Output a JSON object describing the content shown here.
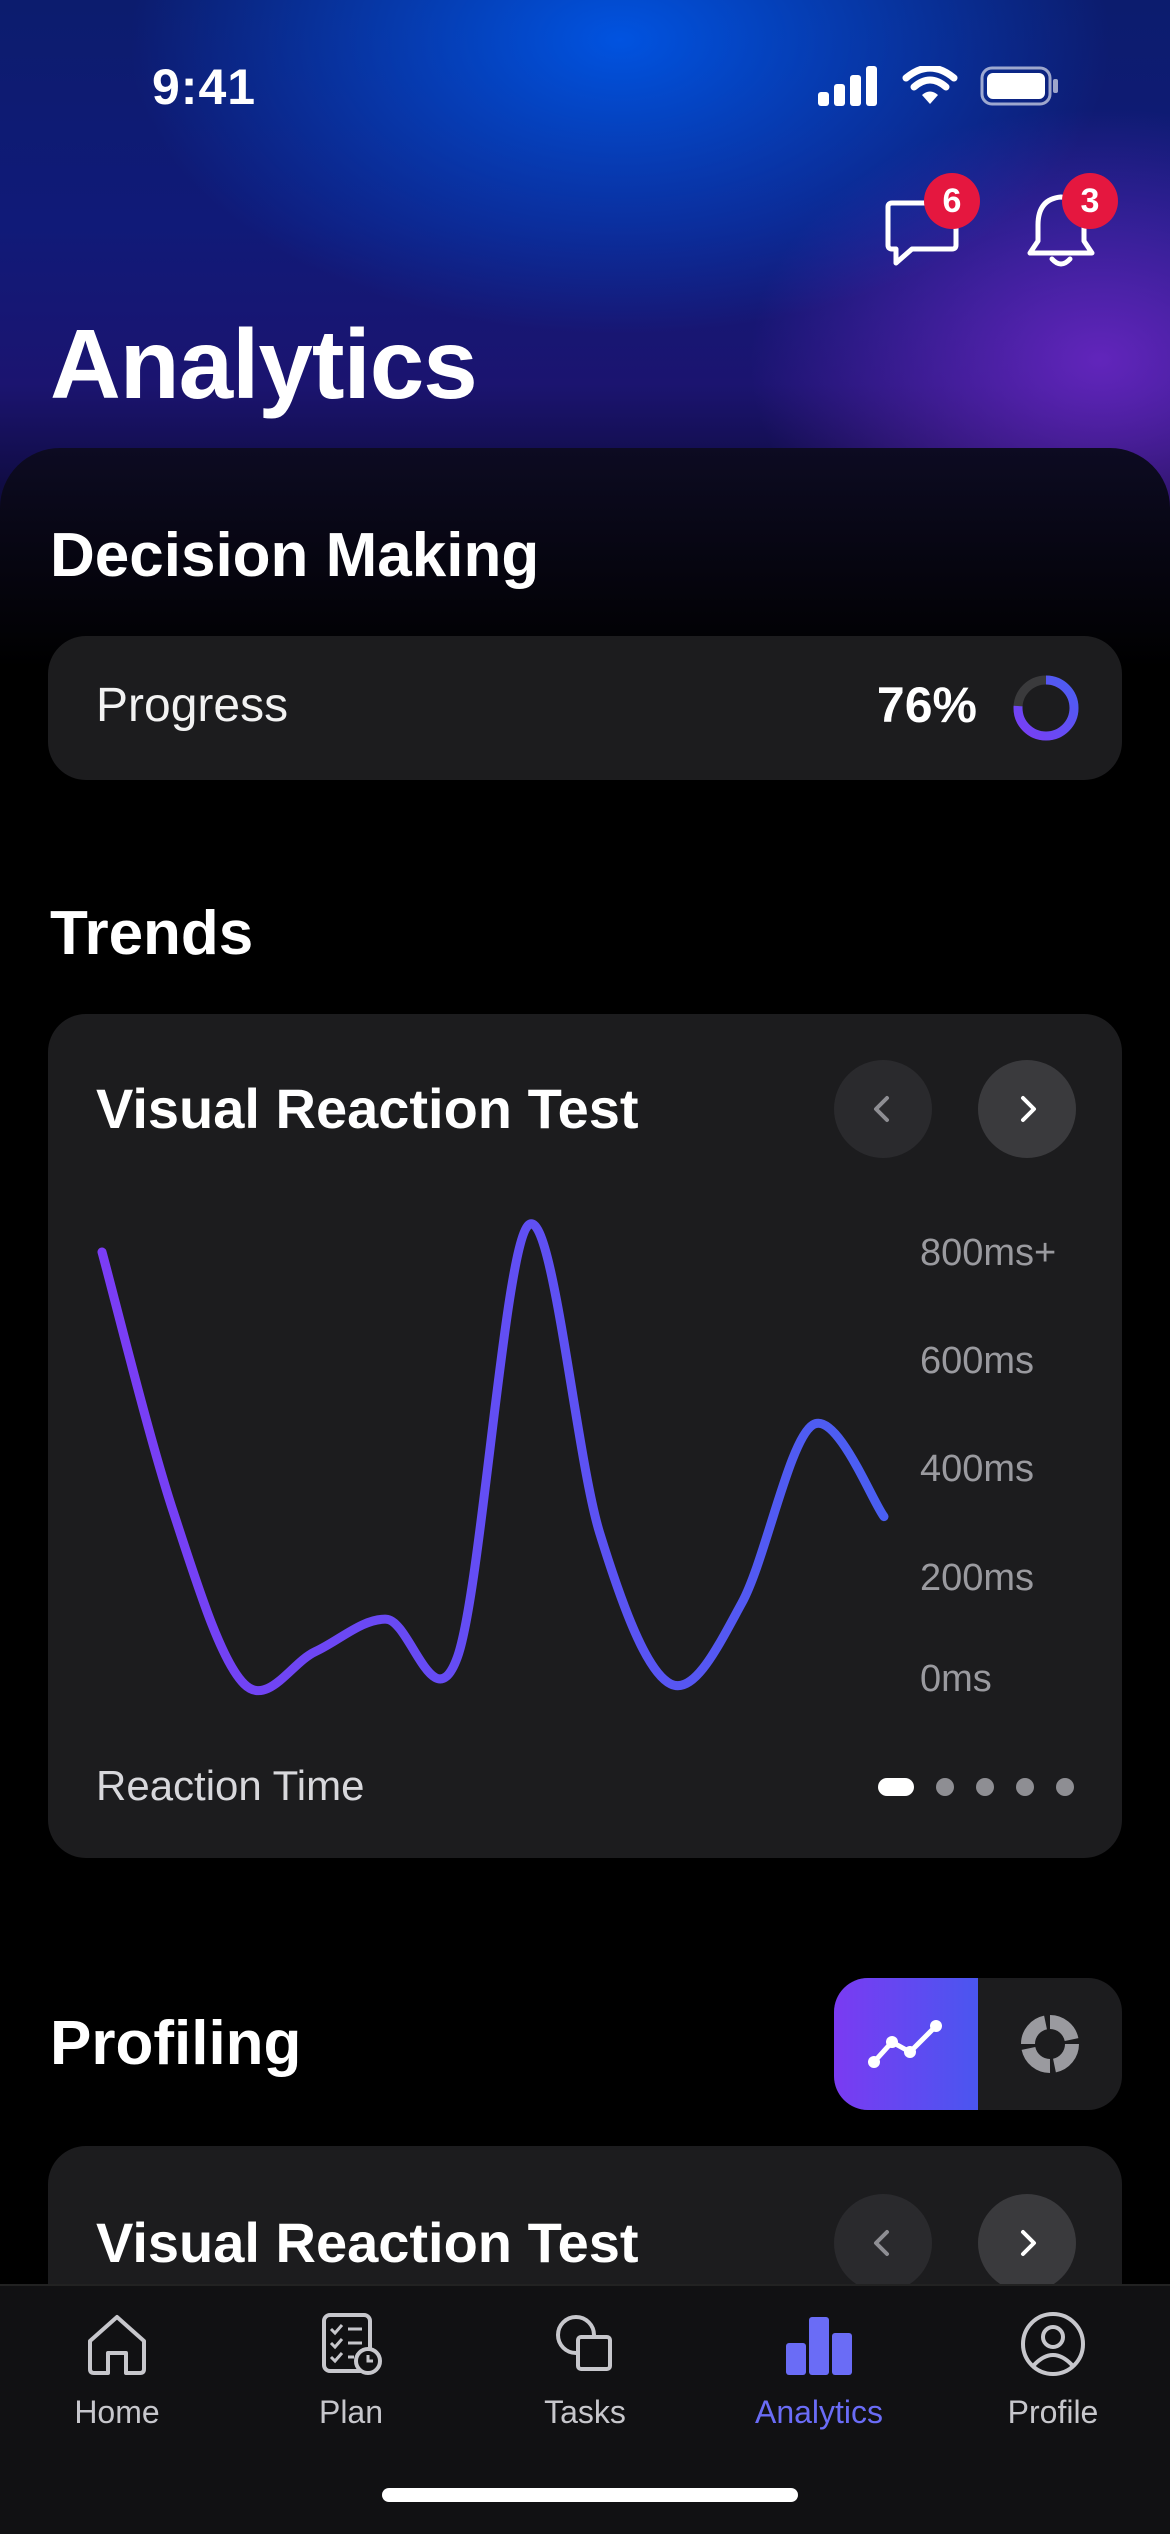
{
  "status_bar": {
    "time": "9:41"
  },
  "header": {
    "title": "Analytics",
    "messages_badge": "6",
    "notifications_badge": "3",
    "messages_icon": "chat-bubble-icon",
    "notifications_icon": "bell-icon"
  },
  "decision_making": {
    "title": "Decision Making",
    "progress_label": "Progress",
    "progress_value": "76%",
    "progress_fraction": 0.76
  },
  "trends": {
    "title": "Trends",
    "card_title": "Visual Reaction Test",
    "footer_label": "Reaction Time",
    "page_count": 5,
    "active_page": 0
  },
  "chart_data": {
    "type": "line",
    "title": "Visual Reaction Test",
    "xlabel": "Reaction Time",
    "ylabel": "",
    "y_ticks": [
      "800ms+",
      "600ms",
      "400ms",
      "200ms",
      "0ms"
    ],
    "ylim": [
      0,
      800
    ],
    "grid": false,
    "series": [
      {
        "x": [
          0,
          1,
          2,
          3,
          4,
          5,
          6,
          7,
          8,
          9,
          10,
          11
        ],
        "values": [
          800,
          320,
          0,
          60,
          120,
          50,
          850,
          280,
          0,
          150,
          480,
          310
        ]
      }
    ],
    "color_start": "#7b3df5",
    "color_end": "#4a5ff2"
  },
  "profiling": {
    "title": "Profiling",
    "toggle_line_icon": "line-chart-icon",
    "toggle_donut_icon": "donut-chart-icon",
    "card_title": "Visual Reaction Test"
  },
  "tabbar": {
    "items": [
      {
        "label": "Home",
        "icon": "home-icon"
      },
      {
        "label": "Plan",
        "icon": "plan-checklist-icon"
      },
      {
        "label": "Tasks",
        "icon": "tasks-shapes-icon"
      },
      {
        "label": "Analytics",
        "icon": "analytics-bars-icon"
      },
      {
        "label": "Profile",
        "icon": "profile-icon"
      }
    ],
    "active": "Analytics",
    "accent": "#6a6cf6"
  }
}
